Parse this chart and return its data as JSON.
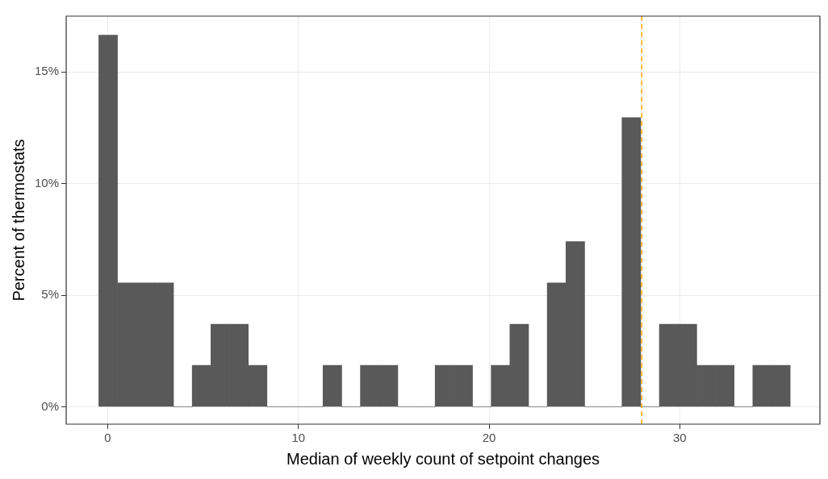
{
  "chart_data": {
    "type": "histogram",
    "xlabel": "Median of weekly count of setpoint changes",
    "ylabel": "Percent of thermostats",
    "bins": [
      -0.47,
      0.51,
      1.49,
      2.47,
      3.45,
      4.43,
      5.41,
      6.39,
      7.37,
      8.35,
      9.33,
      10.31,
      11.29,
      12.27,
      13.25,
      14.23,
      15.21,
      16.19,
      17.17,
      18.15,
      19.13,
      20.11,
      21.09,
      22.07,
      23.05,
      24.03,
      25.01,
      25.99,
      26.97,
      27.95,
      28.93,
      29.91,
      30.89,
      31.87,
      32.85,
      33.83,
      34.81,
      35.79
    ],
    "values": [
      16.65,
      5.55,
      5.55,
      5.55,
      0,
      1.85,
      3.7,
      3.7,
      1.85,
      0,
      0,
      0,
      1.85,
      0,
      1.85,
      1.85,
      0,
      0,
      1.85,
      1.85,
      0,
      1.85,
      3.7,
      0,
      5.55,
      7.4,
      0,
      0,
      12.95,
      0,
      3.7,
      3.7,
      1.85,
      1.85,
      0,
      1.85,
      1.85
    ],
    "color": "#595959",
    "xlim": [
      -2.18,
      37.35
    ],
    "xticks": [
      0,
      10,
      20,
      30
    ],
    "ylim": [
      -0.78,
      17.5
    ],
    "yticks": [
      {
        "value": 0,
        "label": "0%"
      },
      {
        "value": 5,
        "label": "5%"
      },
      {
        "value": 10,
        "label": "10%"
      },
      {
        "value": 15,
        "label": "15%"
      }
    ],
    "grid": true,
    "ref_lines": [
      {
        "axis": "x",
        "value": 28,
        "color": "#ffa500",
        "line_style": "dashed"
      }
    ]
  }
}
